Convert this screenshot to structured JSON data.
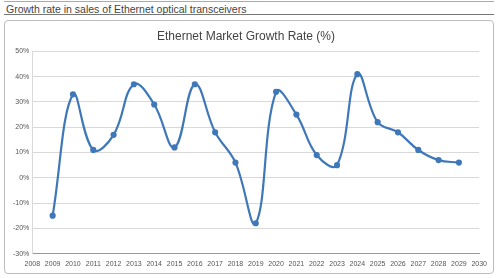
{
  "header": {
    "title": "Growth rate in sales of Ethernet optical transceivers"
  },
  "chart_data": {
    "type": "line",
    "title": "Ethernet Market Growth Rate (%)",
    "x": [
      2009,
      2010,
      2011,
      2012,
      2013,
      2014,
      2015,
      2016,
      2017,
      2018,
      2019,
      2020,
      2021,
      2022,
      2023,
      2024,
      2025,
      2026,
      2027,
      2028,
      2029
    ],
    "values": [
      -15,
      33,
      11,
      17,
      37,
      29,
      12,
      37,
      18,
      6,
      -18,
      34,
      25,
      9,
      5,
      41,
      22,
      18,
      11,
      7,
      6
    ],
    "color": "#3f78b8",
    "marker": "circle",
    "line_style": "solid",
    "xlim": [
      2008,
      2030
    ],
    "xticks": [
      2008,
      2009,
      2010,
      2011,
      2012,
      2013,
      2014,
      2015,
      2016,
      2017,
      2018,
      2019,
      2020,
      2021,
      2022,
      2023,
      2024,
      2025,
      2026,
      2027,
      2028,
      2029,
      2030
    ],
    "ylim": [
      -30,
      50
    ],
    "yticks": [
      {
        "value": -30,
        "label": "-30%"
      },
      {
        "value": -20,
        "label": "-20%"
      },
      {
        "value": -10,
        "label": "-10%"
      },
      {
        "value": 0,
        "label": "0%"
      },
      {
        "value": 10,
        "label": "10%"
      },
      {
        "value": 20,
        "label": "20%"
      },
      {
        "value": 30,
        "label": "30%"
      },
      {
        "value": 40,
        "label": "40%"
      },
      {
        "value": 50,
        "label": "50%"
      }
    ],
    "grid": true,
    "legend": "none"
  }
}
